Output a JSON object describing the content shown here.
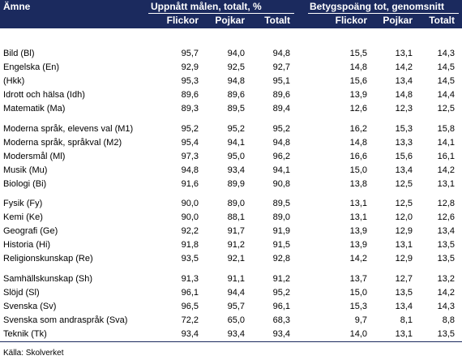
{
  "table": {
    "header": {
      "subject": "Ämne",
      "group1": "Uppnått målen, totalt, %",
      "group2": "Betygspoäng tot, genomsnitt",
      "columns": [
        "Flickor",
        "Pojkar",
        "Totalt",
        "Flickor",
        "Pojkar",
        "Totalt"
      ]
    },
    "groups": [
      [
        [
          "Bild (Bl)",
          "95,7",
          "94,0",
          "94,8",
          "15,5",
          "13,1",
          "14,3"
        ],
        [
          "Engelska (En)",
          "92,9",
          "92,5",
          "92,7",
          "14,8",
          "14,2",
          "14,5"
        ],
        [
          "(Hkk)",
          "95,3",
          "94,8",
          "95,1",
          "15,6",
          "13,4",
          "14,5"
        ],
        [
          "Idrott och hälsa (Idh)",
          "89,6",
          "89,6",
          "89,6",
          "13,9",
          "14,8",
          "14,4"
        ],
        [
          "Matematik (Ma)",
          "89,3",
          "89,5",
          "89,4",
          "12,6",
          "12,3",
          "12,5"
        ]
      ],
      [
        [
          "Moderna språk, elevens val (M1)",
          "95,2",
          "95,2",
          "95,2",
          "16,2",
          "15,3",
          "15,8"
        ],
        [
          "Moderna språk, språkval (M2)",
          "95,4",
          "94,1",
          "94,8",
          "14,8",
          "13,3",
          "14,1"
        ],
        [
          "Modersmål (Ml)",
          "97,3",
          "95,0",
          "96,2",
          "16,6",
          "15,6",
          "16,1"
        ],
        [
          "Musik (Mu)",
          "94,8",
          "93,4",
          "94,1",
          "15,0",
          "13,4",
          "14,2"
        ],
        [
          "Biologi (Bi)",
          "91,6",
          "89,9",
          "90,8",
          "13,8",
          "12,5",
          "13,1"
        ]
      ],
      [
        [
          "Fysik (Fy)",
          "90,0",
          "89,0",
          "89,5",
          "13,1",
          "12,5",
          "12,8"
        ],
        [
          "Kemi (Ke)",
          "90,0",
          "88,1",
          "89,0",
          "13,1",
          "12,0",
          "12,6"
        ],
        [
          "Geografi (Ge)",
          "92,2",
          "91,7",
          "91,9",
          "13,9",
          "12,9",
          "13,4"
        ],
        [
          "Historia (Hi)",
          "91,8",
          "91,2",
          "91,5",
          "13,9",
          "13,1",
          "13,5"
        ],
        [
          "Religionskunskap (Re)",
          "93,5",
          "92,1",
          "92,8",
          "14,2",
          "12,9",
          "13,5"
        ]
      ],
      [
        [
          "Samhällskunskap (Sh)",
          "91,3",
          "91,1",
          "91,2",
          "13,7",
          "12,7",
          "13,2"
        ],
        [
          "Slöjd (Sl)",
          "96,1",
          "94,4",
          "95,2",
          "15,0",
          "13,5",
          "14,2"
        ],
        [
          "Svenska (Sv)",
          "96,5",
          "95,7",
          "96,1",
          "15,3",
          "13,4",
          "14,3"
        ],
        [
          "Svenska som andraspråk (Sva)",
          "72,2",
          "65,0",
          "68,3",
          "9,7",
          "8,1",
          "8,8"
        ],
        [
          "Teknik (Tk)",
          "93,4",
          "93,4",
          "93,4",
          "14,0",
          "13,1",
          "13,5"
        ]
      ]
    ],
    "source": "Källa:  Skolverket"
  }
}
